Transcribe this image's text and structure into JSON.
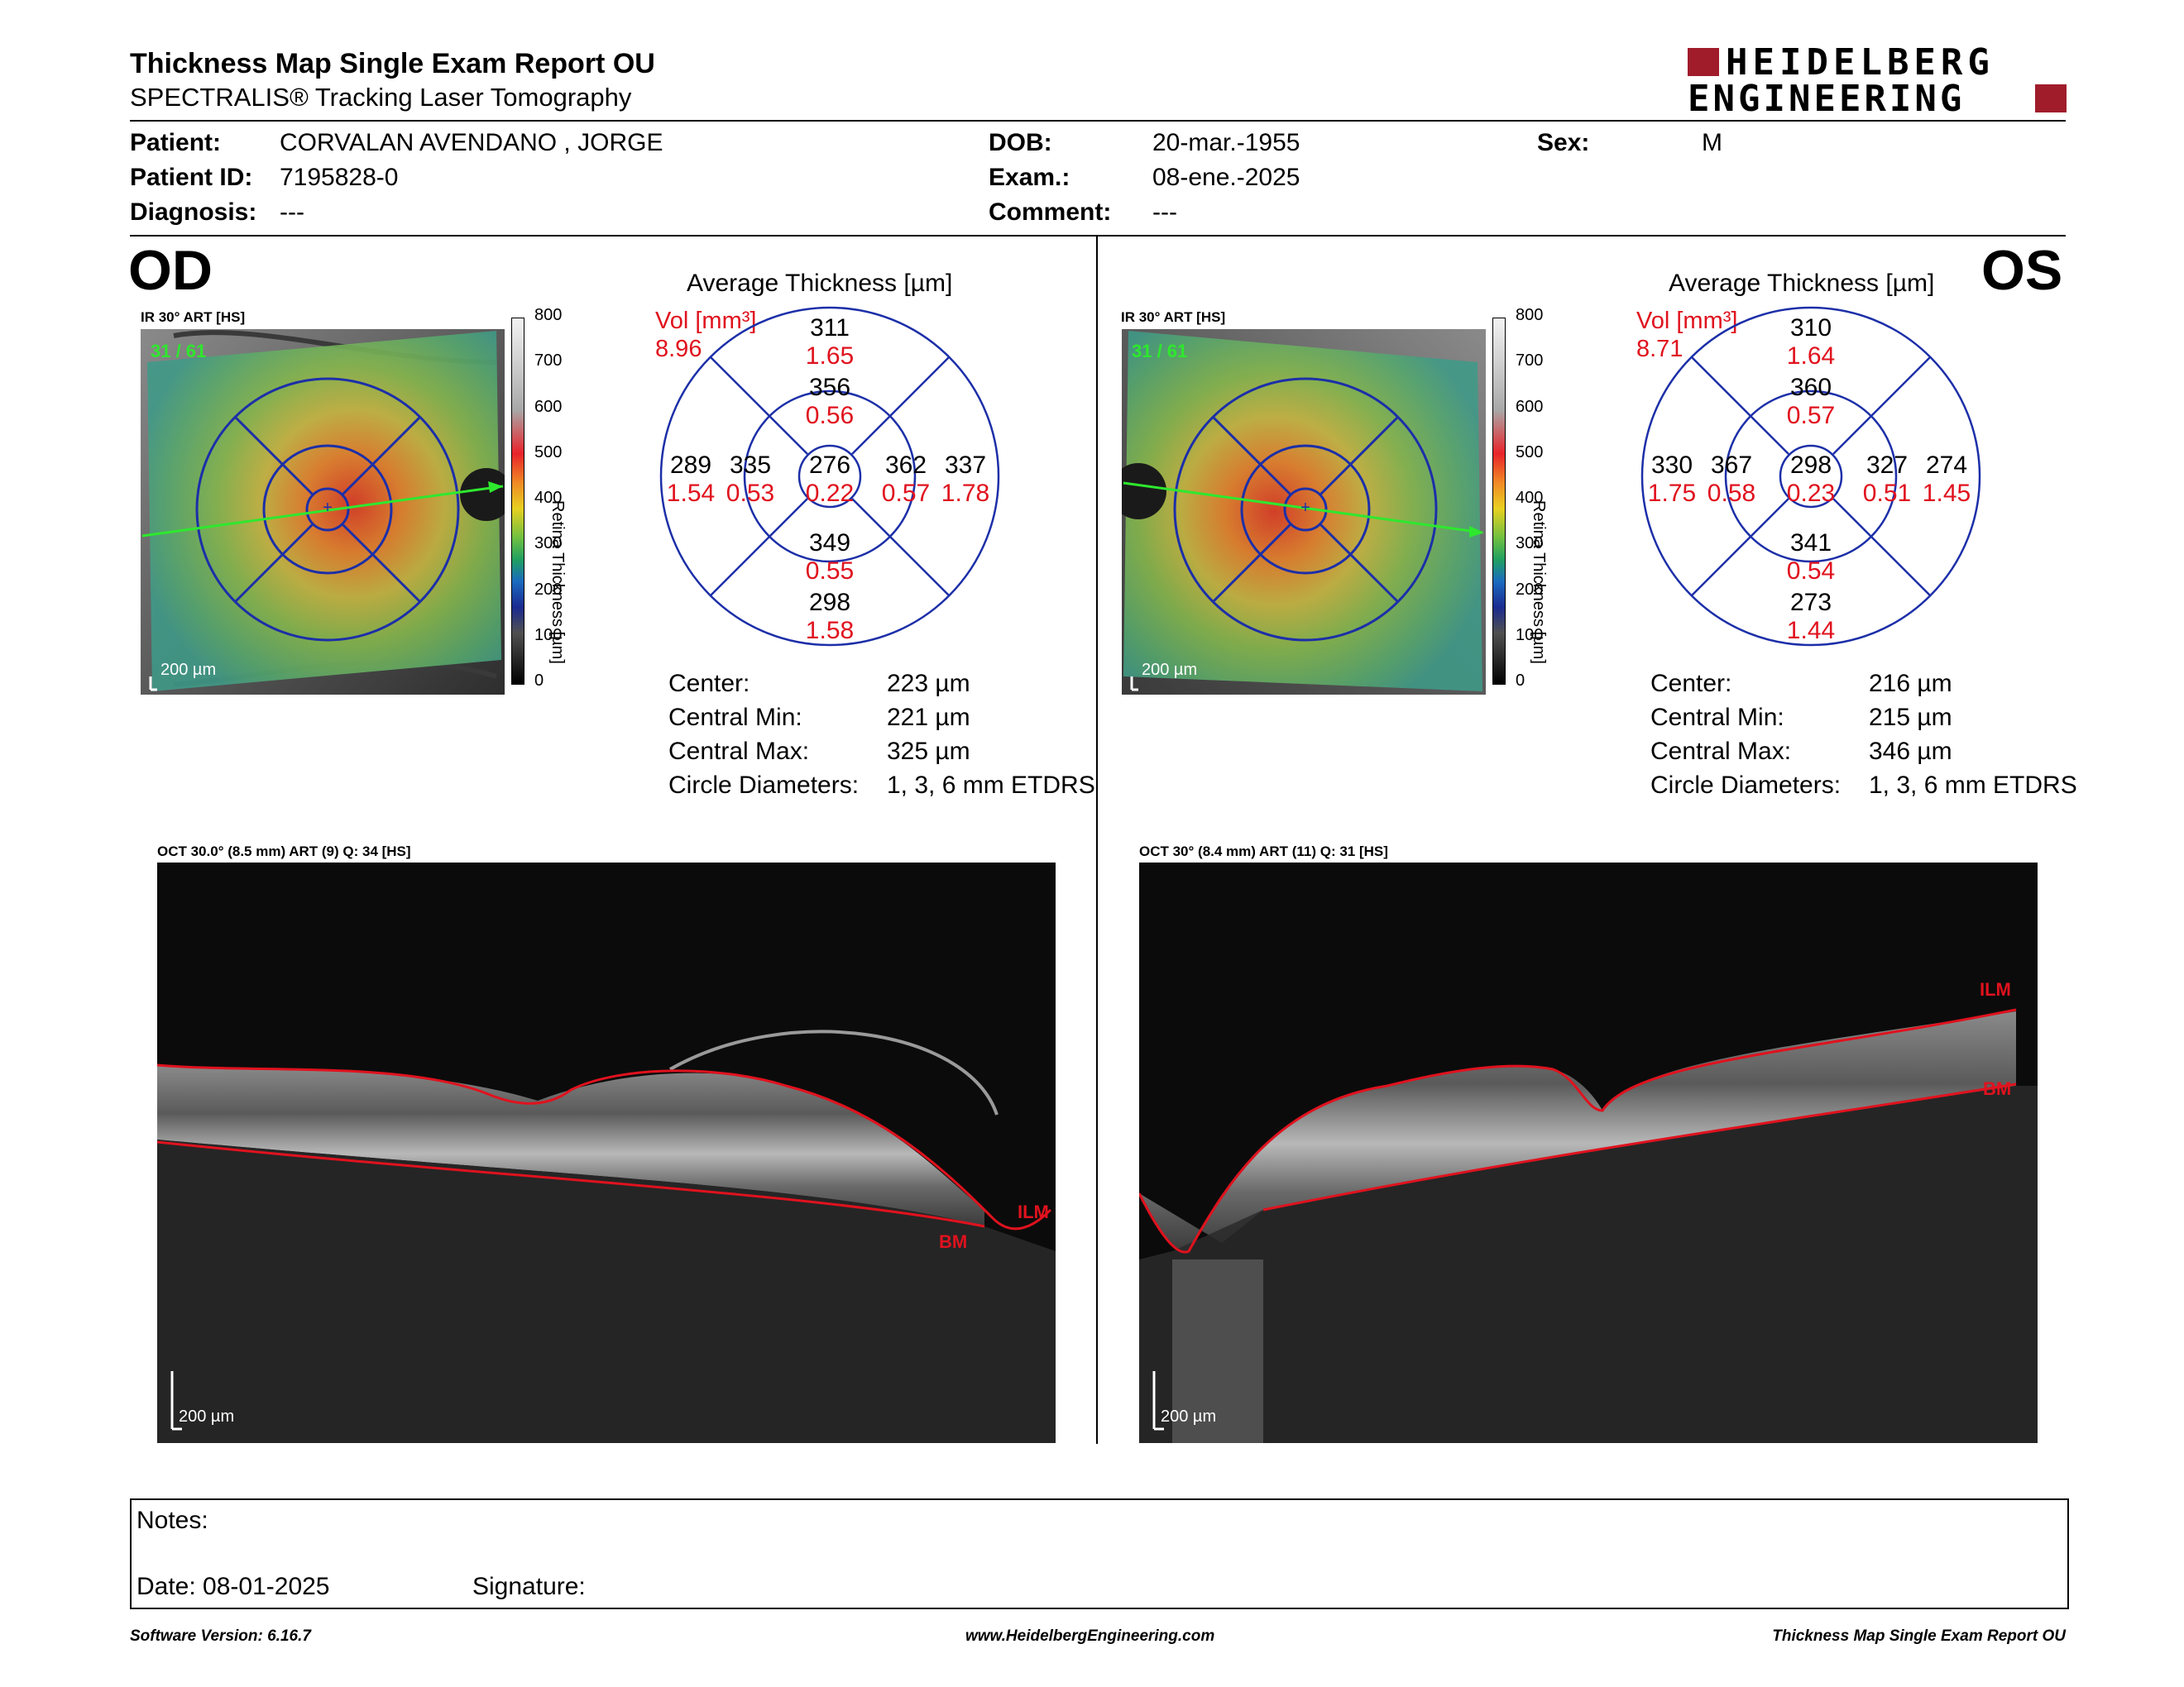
{
  "header": {
    "title": "Thickness Map Single Exam Report OU",
    "subtitle": "SPECTRALIS® Tracking Laser Tomography",
    "logo_line1": "HEIDELBERG",
    "logo_line2": "ENGINEERING",
    "logo_color": "#a01c2b"
  },
  "patient": {
    "patient_label": "Patient:",
    "patient_value": "CORVALAN AVENDANO , JORGE",
    "id_label": "Patient ID:",
    "id_value": "7195828-0",
    "diagnosis_label": "Diagnosis:",
    "diagnosis_value": "---",
    "dob_label": "DOB:",
    "dob_value": "20-mar.-1955",
    "exam_label": "Exam.:",
    "exam_value": "08-ene.-2025",
    "comment_label": "Comment:",
    "comment_value": "---",
    "sex_label": "Sex:",
    "sex_value": "M"
  },
  "od": {
    "eye_label": "OD",
    "ir_label": "IR 30° ART [HS]",
    "ir_frames": "31 / 61",
    "scale_label": "200 µm",
    "avg_title": "Average Thickness [µm]",
    "vol_label": "Vol [mm³]",
    "vol_total": "8.96",
    "sectors": {
      "center": {
        "t": "276",
        "v": "0.22"
      },
      "inner_sup": {
        "t": "356",
        "v": "0.56"
      },
      "inner_inf": {
        "t": "349",
        "v": "0.55"
      },
      "inner_left": {
        "t": "335",
        "v": "0.53"
      },
      "inner_right": {
        "t": "362",
        "v": "0.57"
      },
      "outer_sup": {
        "t": "311",
        "v": "1.65"
      },
      "outer_inf": {
        "t": "298",
        "v": "1.58"
      },
      "outer_left": {
        "t": "289",
        "v": "1.54"
      },
      "outer_right": {
        "t": "337",
        "v": "1.78"
      }
    },
    "stats": {
      "center_label": "Center:",
      "center_value": "223 µm",
      "min_label": "Central Min:",
      "min_value": "221 µm",
      "max_label": "Central Max:",
      "max_value": "325 µm",
      "diam_label": "Circle Diameters:",
      "diam_value": "1, 3, 6 mm ETDRS"
    },
    "oct_label": "OCT 30.0° (8.5 mm) ART (9) Q: 34 [HS]",
    "oct_scale": "200 µm",
    "ilm_label": "ILM",
    "bm_label": "BM"
  },
  "os": {
    "eye_label": "OS",
    "ir_label": "IR 30° ART [HS]",
    "ir_frames": "31 / 61",
    "scale_label": "200 µm",
    "avg_title": "Average Thickness [µm]",
    "vol_label": "Vol [mm³]",
    "vol_total": "8.71",
    "sectors": {
      "center": {
        "t": "298",
        "v": "0.23"
      },
      "inner_sup": {
        "t": "360",
        "v": "0.57"
      },
      "inner_inf": {
        "t": "341",
        "v": "0.54"
      },
      "inner_left": {
        "t": "367",
        "v": "0.58"
      },
      "inner_right": {
        "t": "327",
        "v": "0.51"
      },
      "outer_sup": {
        "t": "310",
        "v": "1.64"
      },
      "outer_inf": {
        "t": "273",
        "v": "1.44"
      },
      "outer_left": {
        "t": "330",
        "v": "1.75"
      },
      "outer_right": {
        "t": "274",
        "v": "1.45"
      }
    },
    "stats": {
      "center_label": "Center:",
      "center_value": "216 µm",
      "min_label": "Central Min:",
      "min_value": "215 µm",
      "max_label": "Central Max:",
      "max_value": "346 µm",
      "diam_label": "Circle Diameters:",
      "diam_value": "1, 3, 6 mm ETDRS"
    },
    "oct_label": "OCT 30° (8.4 mm) ART (11) Q: 31 [HS]",
    "oct_scale": "200 µm",
    "ilm_label": "ILM",
    "bm_label": "BM"
  },
  "colorbar": {
    "ticks": [
      "800",
      "700",
      "600",
      "500",
      "400",
      "300",
      "200",
      "100",
      "0"
    ],
    "axis_label": "Retina  Thickness [µm]"
  },
  "notes": {
    "notes_label": "Notes:",
    "date_label": "Date: 08-01-2025",
    "signature_label": "Signature:"
  },
  "footer": {
    "version": "Software Version: 6.16.7",
    "website": "www.HeidelbergEngineering.com",
    "report_name": "Thickness Map Single Exam Report OU"
  },
  "colors": {
    "vol_red": "#e0121e",
    "grid_blue": "#1c2fa8",
    "oct_line_red": "#e0121e"
  }
}
